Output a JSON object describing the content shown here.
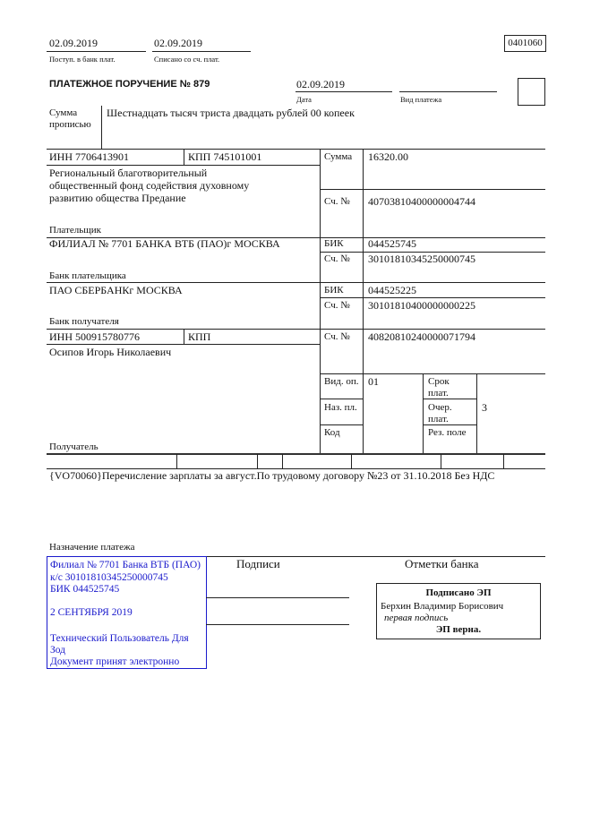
{
  "header": {
    "received_date": "02.09.2019",
    "received_label": "Поступ. в банк плат.",
    "debited_date": "02.09.2019",
    "debited_label": "Списано со сч. плат.",
    "form_code": "0401060",
    "title": "ПЛАТЕЖНОЕ ПОРУЧЕНИЕ № 879",
    "date": "02.09.2019",
    "date_label": "Дата",
    "payment_type_label": "Вид платежа"
  },
  "amount_words": {
    "label_1": "Сумма",
    "label_2": "прописью",
    "value": "Шестнадцать тысяч триста двадцать рублей 00 копеек"
  },
  "payer": {
    "inn": "ИНН 7706413901",
    "kpp": "КПП 745101001",
    "name_lines": [
      " Региональный благотворительный",
      "общественный фонд содействия духовному",
      "развитию общества Предание"
    ],
    "label": "Плательщик",
    "amount_label": "Сумма",
    "amount": "16320.00",
    "account_label": "Сч. №",
    "account": "40703810400000004744"
  },
  "payer_bank": {
    "name": "ФИЛИАЛ № 7701 БАНКА ВТБ (ПАО)г МОСКВА",
    "label": "Банк плательщика",
    "bik_label": "БИК",
    "bik": "044525745",
    "account_label": "Сч. №",
    "account": "30101810345250000745"
  },
  "payee_bank": {
    "name": "ПАО СБЕРБАНКг МОСКВА",
    "label": "Банк получателя",
    "bik_label": "БИК",
    "bik": "044525225",
    "account_label": "Сч. №",
    "account": "30101810400000000225"
  },
  "payee": {
    "inn": "ИНН 500915780776",
    "kpp": "КПП",
    "name": "Осипов Игорь Николаевич",
    "label": "Получатель",
    "account_label": "Сч. №",
    "account": "40820810240000071794"
  },
  "codes": {
    "op_type_label": "Вид. оп.",
    "op_type": "01",
    "purpose_code_label": "Наз. пл.",
    "code_label": "Код",
    "term_label_1": "Срок",
    "term_label_2": "плат.",
    "order_label_1": "Очер.",
    "order_label_2": "плат.",
    "order": "3",
    "reserve_label": "Рез. поле"
  },
  "purpose": {
    "text": "{VO70060}Перечисление зарплаты за август.По трудовому договору №23 от 31.10.2018 Без НДС",
    "label": "Назначение платежа"
  },
  "stamp": {
    "color": "#1a1acc",
    "lines": [
      "Филиал № 7701 Банка ВТБ (ПАО)",
      "к/с 30101810345250000745",
      "БИК 044525745"
    ],
    "date": "2 СЕНТЯБРЯ 2019",
    "footer": [
      "Технический Пользователь Для",
      "Зод",
      "Документ принят электронно"
    ]
  },
  "signatures_label": "Подписи",
  "bank_marks_label": "Отметки банка",
  "esign": {
    "title": "Подписано ЭП",
    "name": "Берхин Владимир Борисович",
    "role": "первая подпись",
    "status": "ЭП верна."
  }
}
